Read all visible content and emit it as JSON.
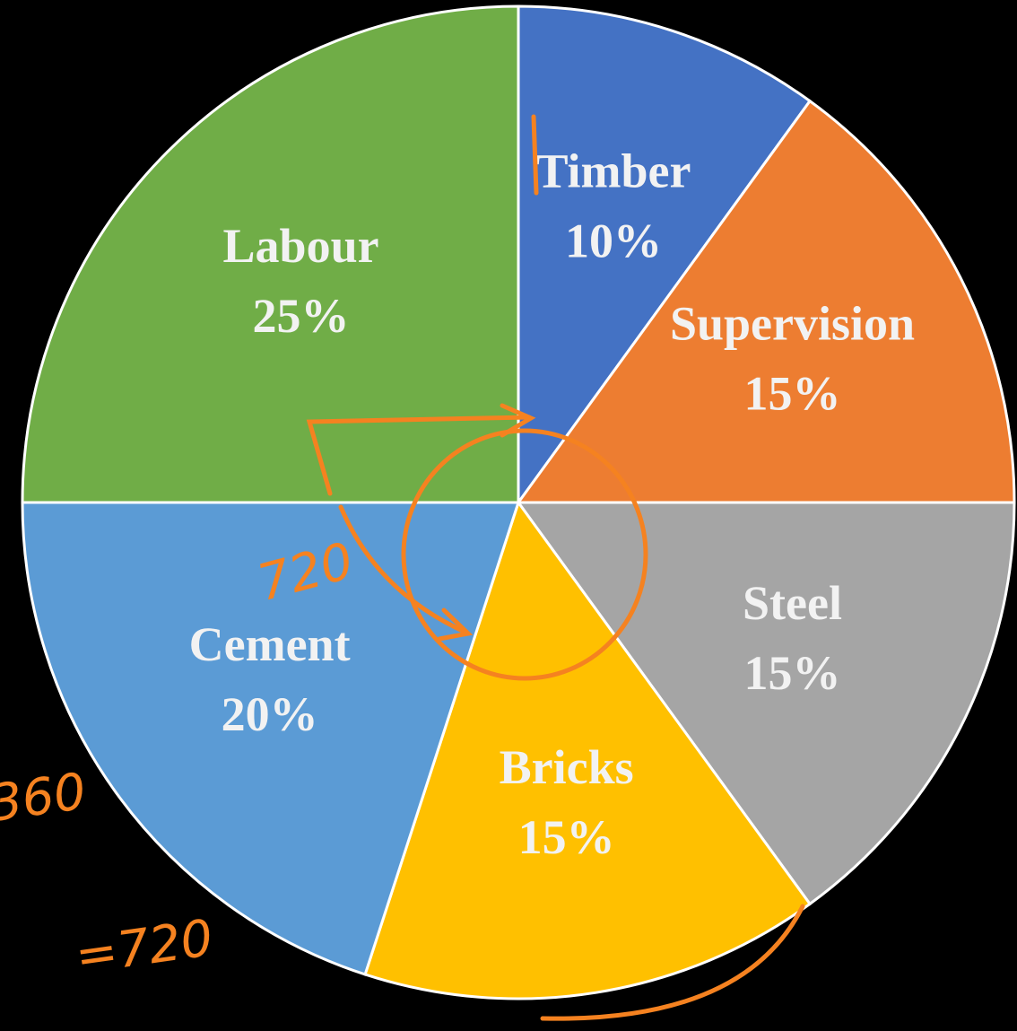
{
  "chart_data": {
    "type": "pie",
    "categories": [
      "Timber",
      "Supervision",
      "Steel",
      "Bricks",
      "Cement",
      "Labour"
    ],
    "values": [
      10,
      15,
      15,
      15,
      20,
      25
    ],
    "value_labels": [
      "10%",
      "15%",
      "15%",
      "15%",
      "20%",
      "25%"
    ],
    "colors": [
      "#4472c4",
      "#ed7d31",
      "#a5a5a5",
      "#ffc000",
      "#5b9bd5",
      "#70ad47"
    ],
    "annotations": [
      "720",
      "360",
      "=720"
    ]
  }
}
